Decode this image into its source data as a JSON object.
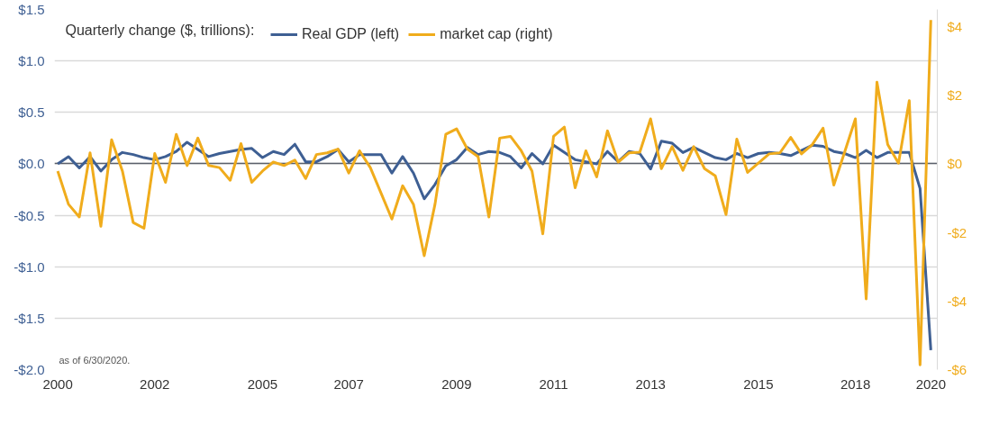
{
  "chart_data": {
    "type": "line",
    "legend_title": "Quarterly change ($, trillions):",
    "categories": [
      "2000",
      null,
      null,
      null,
      null,
      null,
      null,
      null,
      null,
      "2002",
      null,
      null,
      null,
      null,
      null,
      null,
      null,
      null,
      null,
      "2005",
      null,
      null,
      null,
      null,
      null,
      null,
      null,
      "2007",
      null,
      null,
      null,
      null,
      null,
      null,
      null,
      null,
      null,
      "2009",
      null,
      null,
      null,
      null,
      null,
      null,
      null,
      null,
      "2011",
      null,
      null,
      null,
      null,
      null,
      null,
      null,
      null,
      "2013",
      null,
      null,
      null,
      null,
      null,
      null,
      null,
      null,
      null,
      "2015",
      null,
      null,
      null,
      null,
      null,
      null,
      null,
      null,
      "2018",
      null,
      null,
      null,
      null,
      null,
      null,
      "2020"
    ],
    "series": [
      {
        "name": "Real GDP (left)",
        "color": "#3e5f93",
        "values": [
          0.0,
          0.07,
          -0.04,
          0.07,
          -0.07,
          0.04,
          0.11,
          0.09,
          0.06,
          0.04,
          0.07,
          0.12,
          0.21,
          0.14,
          0.07,
          0.1,
          0.12,
          0.14,
          0.15,
          0.06,
          0.12,
          0.09,
          0.19,
          0.02,
          0.02,
          0.07,
          0.14,
          0.02,
          0.09,
          0.09,
          0.09,
          -0.09,
          0.07,
          -0.09,
          -0.34,
          -0.2,
          -0.02,
          0.04,
          0.16,
          0.09,
          0.12,
          0.11,
          0.07,
          -0.04,
          0.1,
          0.0,
          0.18,
          0.11,
          0.04,
          0.02,
          0.0,
          0.12,
          0.02,
          0.12,
          0.1,
          -0.05,
          0.22,
          0.2,
          0.11,
          0.16,
          0.11,
          0.06,
          0.04,
          0.1,
          0.06,
          0.1,
          0.11,
          0.1,
          0.08,
          0.13,
          0.18,
          0.17,
          0.12,
          0.1,
          0.06,
          0.13,
          0.06,
          0.11,
          0.11,
          0.11,
          -0.24,
          -1.81
        ]
      },
      {
        "name": "market cap (right)",
        "color": "#f0ac1c",
        "axis": "y2",
        "values": [
          -0.21,
          -1.18,
          -1.55,
          0.32,
          -1.82,
          0.7,
          -0.21,
          -1.71,
          -1.88,
          0.3,
          -0.54,
          0.86,
          -0.05,
          0.75,
          -0.05,
          -0.11,
          -0.48,
          0.59,
          -0.54,
          -0.21,
          0.05,
          -0.05,
          0.11,
          -0.43,
          0.27,
          0.32,
          0.43,
          -0.27,
          0.38,
          -0.11,
          -0.86,
          -1.61,
          -0.64,
          -1.18,
          -2.68,
          -1.18,
          0.86,
          1.02,
          0.43,
          0.21,
          -1.55,
          0.75,
          0.8,
          0.38,
          -0.21,
          -2.04,
          0.8,
          1.07,
          -0.7,
          0.38,
          -0.38,
          0.96,
          0.05,
          0.32,
          0.34,
          1.31,
          -0.14,
          0.5,
          -0.19,
          0.5,
          -0.14,
          -0.35,
          -1.48,
          0.72,
          -0.25,
          0.02,
          0.29,
          0.32,
          0.77,
          0.29,
          0.56,
          1.04,
          -0.62,
          0.34,
          1.31,
          -3.94,
          2.38,
          0.56,
          0.02,
          1.84,
          -5.86,
          4.19
        ]
      }
    ],
    "ylim": [
      -2.0,
      1.5
    ],
    "yticks": [
      {
        "value": 1.5,
        "label": "$1.5"
      },
      {
        "value": 1.0,
        "label": "$1.0"
      },
      {
        "value": 0.5,
        "label": "$0.5"
      },
      {
        "value": 0,
        "label": "$0.0"
      },
      {
        "value": -0.5,
        "label": "-$0.5"
      },
      {
        "value": -1.0,
        "label": "-$1.0"
      },
      {
        "value": -1.5,
        "label": "-$1.5"
      },
      {
        "value": -2.0,
        "label": "-$2.0"
      }
    ],
    "y2lim": [
      -6,
      4.5
    ],
    "y2ticks": [
      {
        "value": 4,
        "label": "$4"
      },
      {
        "value": 2,
        "label": "$2"
      },
      {
        "value": 0,
        "label": "$0"
      },
      {
        "value": -2,
        "label": "-$2"
      },
      {
        "value": -4,
        "label": "-$4"
      },
      {
        "value": -6,
        "label": "-$6"
      }
    ],
    "ref_lines": [
      {
        "axis": "y",
        "value": 0,
        "color": "#5a5f6a"
      }
    ],
    "grid": "y",
    "legend": "top",
    "line_style": "solid",
    "marker": "none",
    "annotations": [
      "as of 6/30/2020."
    ]
  }
}
